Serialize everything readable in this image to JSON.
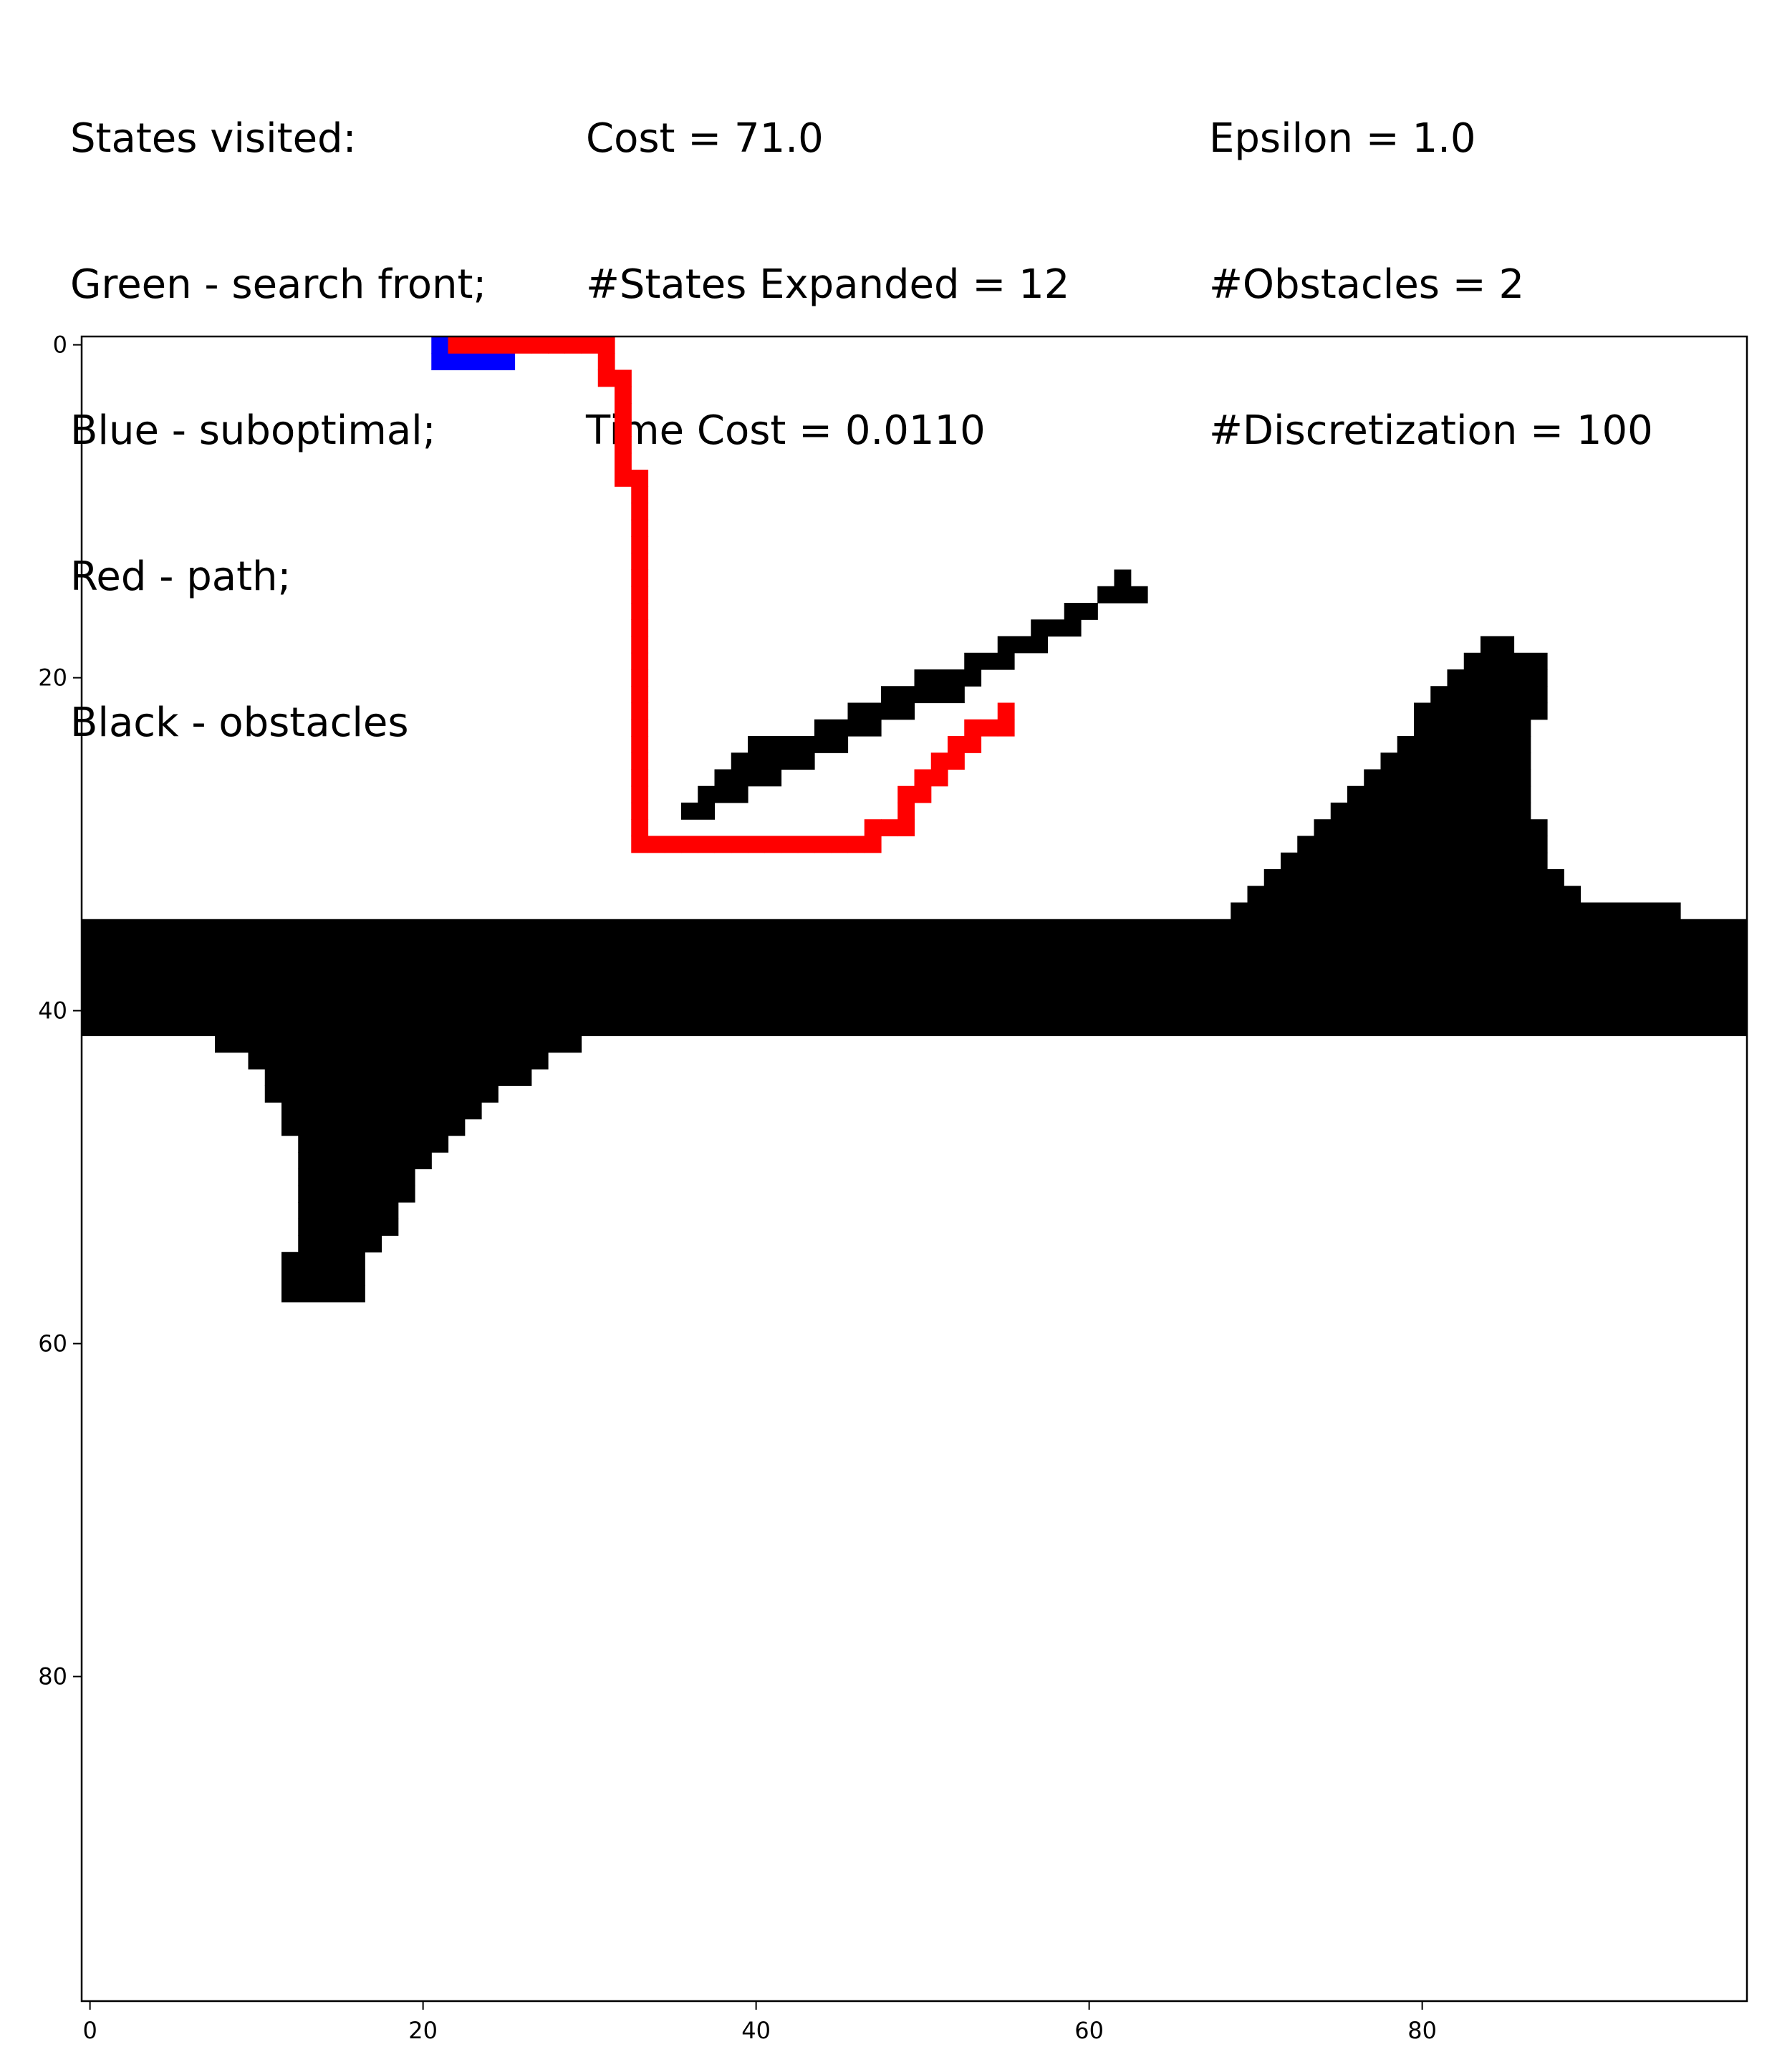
{
  "header": {
    "col1": [
      "States visited:",
      "Green - search front;",
      "Blue - suboptimal;",
      "Red - path;",
      "Black - obstacles"
    ],
    "col2": [
      "Cost = 71.0",
      "#States Expanded = 12",
      "Time Cost = 0.0110"
    ],
    "col3": [
      "Epsilon = 1.0",
      "#Obstacles = 2",
      "#Discretization = 100"
    ]
  },
  "chart_data": {
    "type": "heatmap",
    "grid_size": 100,
    "xlim": [
      -0.5,
      99.5
    ],
    "ylim": [
      99.5,
      -0.5
    ],
    "x_ticks": [
      0,
      20,
      40,
      60,
      80
    ],
    "y_ticks": [
      0,
      20,
      40,
      60,
      80
    ],
    "colors": {
      "background": "#ffffff",
      "obstacle": "#000000",
      "suboptimal": "#0000ff",
      "path": "#ff0000",
      "search_front": "#00ff00"
    },
    "obstacle_runs": [
      [
        14,
        62,
        62
      ],
      [
        15,
        61,
        63
      ],
      [
        16,
        59,
        60
      ],
      [
        17,
        57,
        59
      ],
      [
        18,
        55,
        57
      ],
      [
        19,
        53,
        55
      ],
      [
        20,
        50,
        53
      ],
      [
        21,
        48,
        52
      ],
      [
        22,
        46,
        49
      ],
      [
        23,
        44,
        47
      ],
      [
        24,
        40,
        45
      ],
      [
        25,
        39,
        43
      ],
      [
        26,
        38,
        41
      ],
      [
        27,
        37,
        39
      ],
      [
        28,
        36,
        37
      ],
      [
        18,
        84,
        85
      ],
      [
        19,
        83,
        87
      ],
      [
        20,
        82,
        87
      ],
      [
        21,
        81,
        87
      ],
      [
        22,
        80,
        87
      ],
      [
        23,
        80,
        86
      ],
      [
        24,
        79,
        86
      ],
      [
        25,
        78,
        86
      ],
      [
        26,
        77,
        86
      ],
      [
        27,
        76,
        86
      ],
      [
        28,
        75,
        86
      ],
      [
        29,
        74,
        87
      ],
      [
        30,
        73,
        87
      ],
      [
        31,
        72,
        87
      ],
      [
        32,
        71,
        88
      ],
      [
        33,
        70,
        89
      ],
      [
        34,
        69,
        95
      ],
      [
        35,
        0,
        99
      ],
      [
        36,
        0,
        99
      ],
      [
        37,
        0,
        99
      ],
      [
        38,
        0,
        99
      ],
      [
        39,
        0,
        99
      ],
      [
        40,
        0,
        99
      ],
      [
        41,
        0,
        99
      ],
      [
        42,
        8,
        29
      ],
      [
        43,
        10,
        27
      ],
      [
        44,
        11,
        26
      ],
      [
        45,
        11,
        24
      ],
      [
        46,
        12,
        23
      ],
      [
        47,
        12,
        22
      ],
      [
        48,
        13,
        21
      ],
      [
        49,
        13,
        20
      ],
      [
        50,
        13,
        19
      ],
      [
        51,
        13,
        19
      ],
      [
        52,
        13,
        18
      ],
      [
        53,
        13,
        18
      ],
      [
        54,
        13,
        17
      ],
      [
        55,
        12,
        16
      ],
      [
        56,
        12,
        16
      ],
      [
        57,
        12,
        16
      ]
    ],
    "suboptimal_runs": [
      [
        0,
        21,
        21
      ],
      [
        1,
        21,
        25
      ]
    ],
    "path_cells": [
      [
        0,
        22
      ],
      [
        0,
        23
      ],
      [
        0,
        24
      ],
      [
        0,
        25
      ],
      [
        0,
        26
      ],
      [
        0,
        27
      ],
      [
        0,
        28
      ],
      [
        0,
        29
      ],
      [
        0,
        30
      ],
      [
        0,
        31
      ],
      [
        1,
        31
      ],
      [
        2,
        31
      ],
      [
        2,
        32
      ],
      [
        3,
        32
      ],
      [
        4,
        32
      ],
      [
        5,
        32
      ],
      [
        6,
        32
      ],
      [
        7,
        32
      ],
      [
        8,
        32
      ],
      [
        8,
        33
      ],
      [
        9,
        33
      ],
      [
        10,
        33
      ],
      [
        11,
        33
      ],
      [
        12,
        33
      ],
      [
        13,
        33
      ],
      [
        14,
        33
      ],
      [
        15,
        33
      ],
      [
        16,
        33
      ],
      [
        17,
        33
      ],
      [
        18,
        33
      ],
      [
        19,
        33
      ],
      [
        20,
        33
      ],
      [
        21,
        33
      ],
      [
        22,
        33
      ],
      [
        23,
        33
      ],
      [
        24,
        33
      ],
      [
        25,
        33
      ],
      [
        26,
        33
      ],
      [
        27,
        33
      ],
      [
        28,
        33
      ],
      [
        29,
        33
      ],
      [
        30,
        33
      ],
      [
        30,
        34
      ],
      [
        30,
        35
      ],
      [
        30,
        36
      ],
      [
        30,
        37
      ],
      [
        30,
        38
      ],
      [
        30,
        39
      ],
      [
        30,
        40
      ],
      [
        30,
        41
      ],
      [
        30,
        42
      ],
      [
        30,
        43
      ],
      [
        30,
        44
      ],
      [
        30,
        45
      ],
      [
        30,
        46
      ],
      [
        30,
        47
      ],
      [
        29,
        47
      ],
      [
        29,
        48
      ],
      [
        29,
        49
      ],
      [
        28,
        49
      ],
      [
        27,
        49
      ],
      [
        27,
        50
      ],
      [
        26,
        50
      ],
      [
        26,
        51
      ],
      [
        25,
        51
      ],
      [
        25,
        52
      ],
      [
        24,
        52
      ],
      [
        24,
        53
      ],
      [
        23,
        53
      ],
      [
        23,
        54
      ],
      [
        23,
        55
      ],
      [
        22,
        55
      ]
    ]
  }
}
